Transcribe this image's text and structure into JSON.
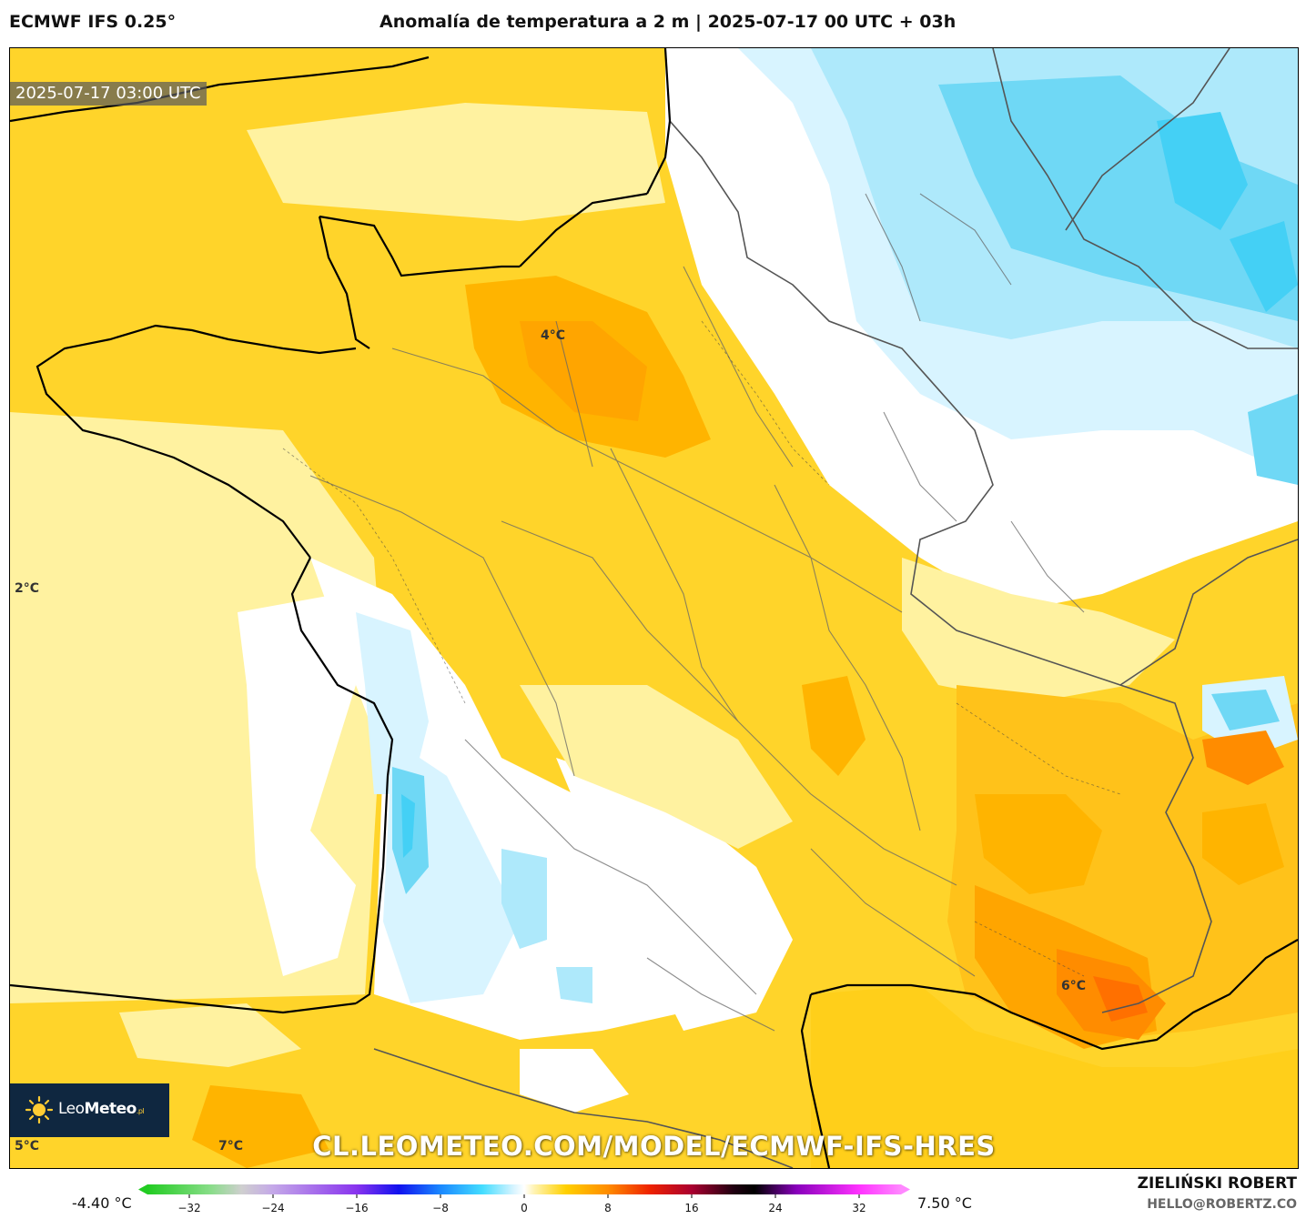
{
  "header": {
    "model": "ECMWF IFS 0.25°",
    "title": "Anomalía de temperatura a 2 m | 2025-07-17 00 UTC + 03h"
  },
  "map": {
    "valid_time": "2025-07-17 03:00 UTC",
    "labels": [
      "4°C",
      "2°C",
      "6°C",
      "5°C",
      "7°C"
    ],
    "watermark": "CL.LEOMETEO.COM/MODEL/ECMWF-IFS-HRES"
  },
  "logo": {
    "light": "Leo",
    "bold": "Meteo",
    "suffix": ".pl"
  },
  "colorbar": {
    "min_label": "-4.40 °C",
    "max_label": "7.50 °C",
    "ticks": [
      "−32",
      "−24",
      "−16",
      "−8",
      "0",
      "8",
      "16",
      "24",
      "32"
    ],
    "tick_values": [
      -32,
      -24,
      -16,
      -8,
      0,
      8,
      16,
      24,
      32
    ],
    "range": [
      -36,
      36
    ],
    "stops": [
      {
        "value": -36,
        "color": "#22cc22"
      },
      {
        "value": -30,
        "color": "#88dd88"
      },
      {
        "value": -27,
        "color": "#cfcfcf"
      },
      {
        "value": -24,
        "color": "#c4a8e8"
      },
      {
        "value": -16,
        "color": "#8833ee"
      },
      {
        "value": -12,
        "color": "#1111ee"
      },
      {
        "value": -8,
        "color": "#1a88ff"
      },
      {
        "value": -4,
        "color": "#44ddff"
      },
      {
        "value": -1,
        "color": "#d8f4ff"
      },
      {
        "value": 0,
        "color": "#ffffff"
      },
      {
        "value": 1,
        "color": "#fff3b0"
      },
      {
        "value": 4,
        "color": "#ffd000"
      },
      {
        "value": 8,
        "color": "#ff8c00"
      },
      {
        "value": 12,
        "color": "#ee2200"
      },
      {
        "value": 16,
        "color": "#aa0030"
      },
      {
        "value": 20,
        "color": "#200010"
      },
      {
        "value": 22,
        "color": "#000000"
      },
      {
        "value": 26,
        "color": "#8800bb"
      },
      {
        "value": 32,
        "color": "#ff33ff"
      },
      {
        "value": 36,
        "color": "#ff88ff"
      }
    ]
  },
  "credits": {
    "author": "ZIELIŃSKI ROBERT",
    "email": "HELLO@ROBERTZ.CO"
  }
}
